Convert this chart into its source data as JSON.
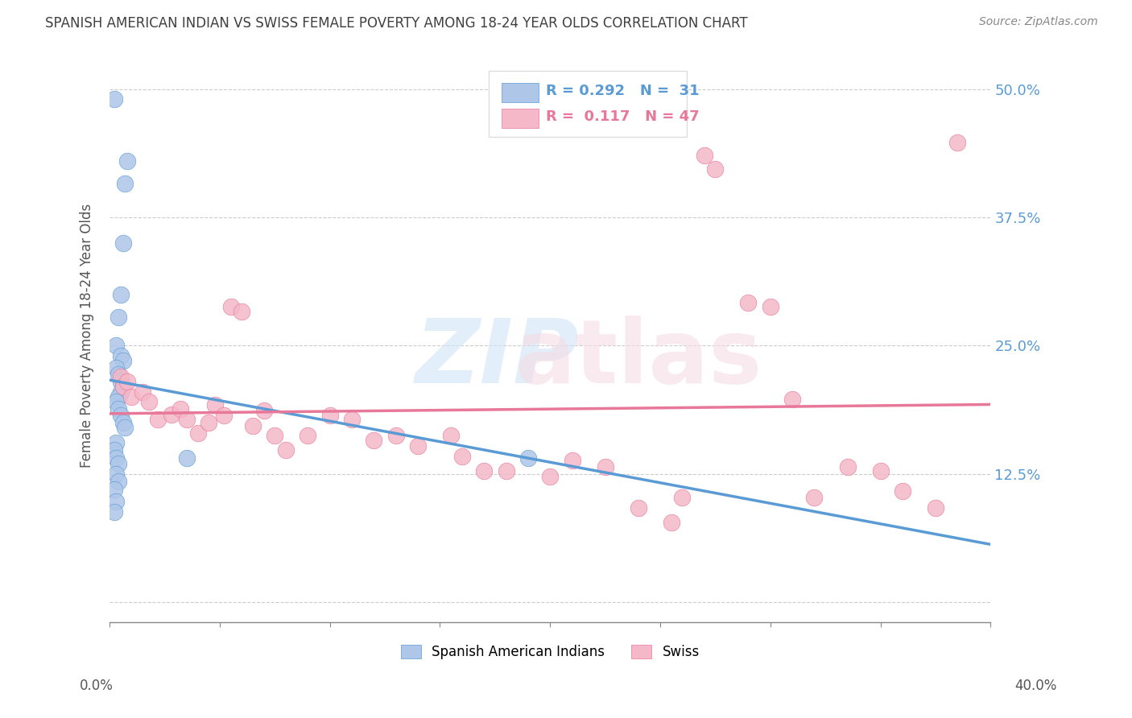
{
  "title": "SPANISH AMERICAN INDIAN VS SWISS FEMALE POVERTY AMONG 18-24 YEAR OLDS CORRELATION CHART",
  "source": "Source: ZipAtlas.com",
  "ylabel": "Female Poverty Among 18-24 Year Olds",
  "xlim": [
    0.0,
    0.4
  ],
  "ylim": [
    -0.02,
    0.54
  ],
  "ytick_vals": [
    0.0,
    0.125,
    0.25,
    0.375,
    0.5
  ],
  "ytick_labels_right": [
    "",
    "12.5%",
    "25.0%",
    "37.5%",
    "50.0%"
  ],
  "blue_color": "#5b9bd5",
  "pink_color": "#e8789a",
  "blue_scatter_color": "#aec6e8",
  "pink_scatter_color": "#f4b8c8",
  "background_color": "#ffffff",
  "grid_color": "#cccccc",
  "title_color": "#404040",
  "legend_r_blue": "R = 0.292",
  "legend_n_blue": "N =  31",
  "legend_r_pink": "R =  0.117",
  "legend_n_pink": "N = 47",
  "legend_label_blue": "Spanish American Indians",
  "legend_label_pink": "Swiss",
  "blue_x": [
    0.002,
    0.008,
    0.007,
    0.006,
    0.005,
    0.004,
    0.003,
    0.005,
    0.006,
    0.003,
    0.004,
    0.005,
    0.006,
    0.005,
    0.004,
    0.003,
    0.004,
    0.005,
    0.006,
    0.007,
    0.003,
    0.002,
    0.003,
    0.004,
    0.003,
    0.004,
    0.002,
    0.003,
    0.002,
    0.19,
    0.035
  ],
  "blue_y": [
    0.49,
    0.43,
    0.408,
    0.35,
    0.3,
    0.278,
    0.25,
    0.24,
    0.235,
    0.228,
    0.222,
    0.215,
    0.21,
    0.205,
    0.2,
    0.195,
    0.188,
    0.182,
    0.175,
    0.17,
    0.155,
    0.148,
    0.14,
    0.135,
    0.125,
    0.118,
    0.11,
    0.098,
    0.088,
    0.14,
    0.14
  ],
  "pink_x": [
    0.005,
    0.006,
    0.008,
    0.01,
    0.015,
    0.018,
    0.022,
    0.028,
    0.032,
    0.035,
    0.04,
    0.045,
    0.048,
    0.052,
    0.055,
    0.06,
    0.065,
    0.07,
    0.075,
    0.08,
    0.09,
    0.1,
    0.11,
    0.12,
    0.13,
    0.14,
    0.155,
    0.16,
    0.17,
    0.18,
    0.2,
    0.21,
    0.225,
    0.24,
    0.255,
    0.26,
    0.27,
    0.275,
    0.29,
    0.3,
    0.31,
    0.32,
    0.335,
    0.35,
    0.36,
    0.375,
    0.385
  ],
  "pink_y": [
    0.22,
    0.21,
    0.215,
    0.2,
    0.205,
    0.195,
    0.178,
    0.183,
    0.188,
    0.178,
    0.165,
    0.175,
    0.192,
    0.182,
    0.288,
    0.283,
    0.172,
    0.187,
    0.162,
    0.148,
    0.162,
    0.182,
    0.178,
    0.158,
    0.162,
    0.152,
    0.162,
    0.142,
    0.128,
    0.128,
    0.122,
    0.138,
    0.132,
    0.092,
    0.078,
    0.102,
    0.435,
    0.422,
    0.292,
    0.288,
    0.198,
    0.102,
    0.132,
    0.128,
    0.108,
    0.092,
    0.448
  ]
}
